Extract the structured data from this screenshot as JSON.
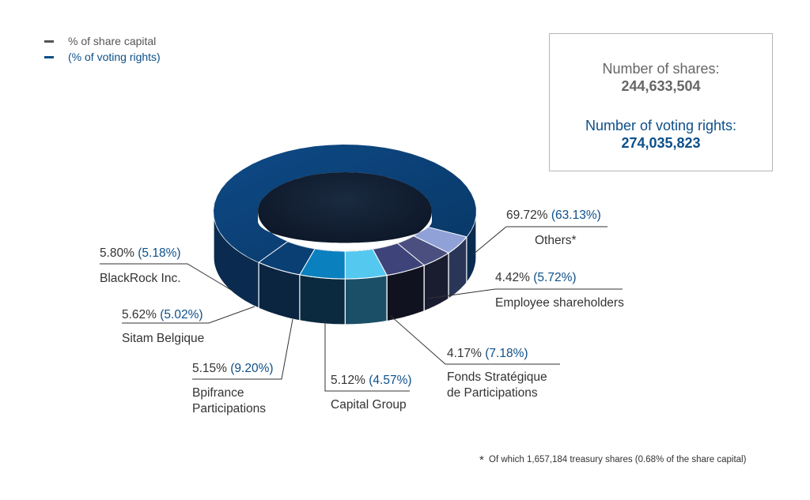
{
  "legend": {
    "share_capital": "% of share capital",
    "voting_rights": "(% of voting rights)",
    "share_color": "#555555",
    "voting_color": "#0d4f8a"
  },
  "totals": {
    "shares_label": "Number of shares:",
    "shares_value": "244,633,504",
    "voting_label": "Number of voting rights:",
    "voting_value": "274,035,823"
  },
  "footnote": {
    "star": "*",
    "text": "Of which 1,657,184 treasury shares (0.68% of the share capital)"
  },
  "chart_data": {
    "type": "pie",
    "variant": "3d-donut",
    "series": [
      {
        "label": "Others*",
        "share_capital": 69.72,
        "voting_rights": 63.13,
        "share_text": "69.72%",
        "voting_text": "(63.13%)"
      },
      {
        "label": "Employee shareholders",
        "share_capital": 4.42,
        "voting_rights": 5.72,
        "share_text": "4.42%",
        "voting_text": "(5.72%)"
      },
      {
        "label": "Fonds Stratégique de Participations",
        "share_capital": 4.17,
        "voting_rights": 7.18,
        "share_text": "4.17%",
        "voting_text": "(7.18%)"
      },
      {
        "label": "Capital Group",
        "share_capital": 5.12,
        "voting_rights": 4.57,
        "share_text": "5.12%",
        "voting_text": "(4.57%)"
      },
      {
        "label": "Bpifrance Participations",
        "share_capital": 5.15,
        "voting_rights": 9.2,
        "share_text": "5.15%",
        "voting_text": "(9.20%)"
      },
      {
        "label": "Sitam Belgique",
        "share_capital": 5.62,
        "voting_rights": 5.02,
        "share_text": "5.62%",
        "voting_text": "(5.02%)"
      },
      {
        "label": "BlackRock Inc.",
        "share_capital": 5.8,
        "voting_rights": 5.18,
        "share_text": "5.80%",
        "voting_text": "(5.18%)"
      }
    ],
    "colors": {
      "others": "#0a3f73",
      "employee": "#8fa1d6",
      "fsp": "#4a4f80",
      "capital": "#3e447a",
      "bpifrance": "#55c8ef",
      "sitam": "#0a80bf",
      "blackrock": "#0a3f73"
    }
  }
}
